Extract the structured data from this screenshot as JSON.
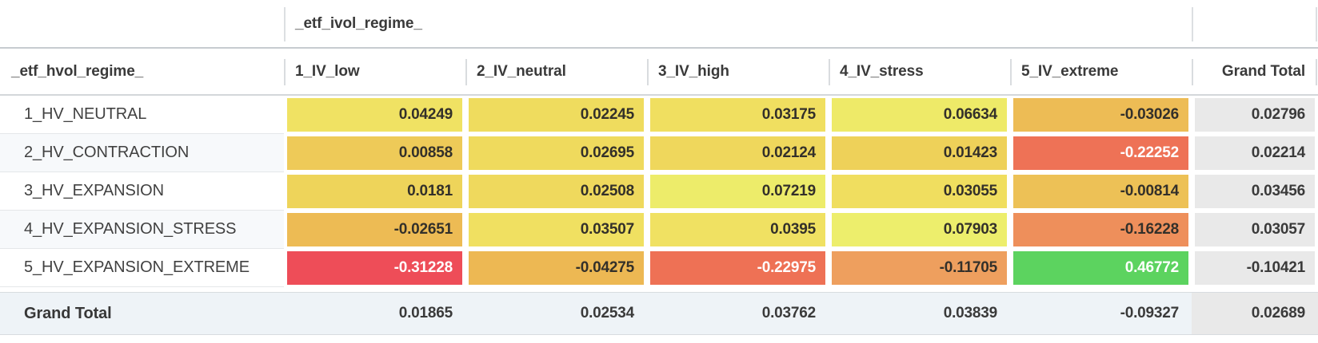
{
  "table": {
    "col_group_header": "_etf_ivol_regime_",
    "row_group_header": "_etf_hvol_regime_",
    "column_headers": [
      "1_IV_low",
      "2_IV_neutral",
      "3_IV_high",
      "4_IV_stress",
      "5_IV_extreme"
    ],
    "grand_total_col_label": "Grand Total",
    "grand_total_row_label": "Grand Total",
    "rows": [
      {
        "label": "1_HV_NEUTRAL",
        "cells": [
          {
            "text": "0.04249",
            "bg": "#f0e263",
            "fg": "#33302a"
          },
          {
            "text": "0.02245",
            "bg": "#efdc5e",
            "fg": "#33302a"
          },
          {
            "text": "0.03175",
            "bg": "#f0df60",
            "fg": "#33302a"
          },
          {
            "text": "0.06634",
            "bg": "#eeea68",
            "fg": "#33302a"
          },
          {
            "text": "-0.03026",
            "bg": "#edbc55",
            "fg": "#33302a"
          }
        ],
        "total": "0.02796"
      },
      {
        "label": "2_HV_CONTRACTION",
        "cells": [
          {
            "text": "0.00858",
            "bg": "#eeca58",
            "fg": "#33302a"
          },
          {
            "text": "0.02695",
            "bg": "#efda5d",
            "fg": "#33302a"
          },
          {
            "text": "0.02124",
            "bg": "#efd75c",
            "fg": "#33302a"
          },
          {
            "text": "0.01423",
            "bg": "#eed159",
            "fg": "#33302a"
          },
          {
            "text": "-0.22252",
            "bg": "#ee7256",
            "fg": "#ffffff"
          }
        ],
        "total": "0.02214"
      },
      {
        "label": "3_HV_EXPANSION",
        "cells": [
          {
            "text": "0.0181",
            "bg": "#eed45a",
            "fg": "#33302a"
          },
          {
            "text": "0.02508",
            "bg": "#efd95d",
            "fg": "#33302a"
          },
          {
            "text": "0.07219",
            "bg": "#edec6a",
            "fg": "#33302a"
          },
          {
            "text": "0.03055",
            "bg": "#f0de5f",
            "fg": "#33302a"
          },
          {
            "text": "-0.00814",
            "bg": "#edc156",
            "fg": "#33302a"
          }
        ],
        "total": "0.03456"
      },
      {
        "label": "4_HV_EXPANSION_STRESS",
        "cells": [
          {
            "text": "-0.02651",
            "bg": "#edbb54",
            "fg": "#33302a"
          },
          {
            "text": "0.03507",
            "bg": "#f0e061",
            "fg": "#33302a"
          },
          {
            "text": "0.0395",
            "bg": "#f0e162",
            "fg": "#33302a"
          },
          {
            "text": "0.07903",
            "bg": "#edee6c",
            "fg": "#33302a"
          },
          {
            "text": "-0.16228",
            "bg": "#ee8f5b",
            "fg": "#33302a"
          }
        ],
        "total": "0.03057"
      },
      {
        "label": "5_HV_EXPANSION_EXTREME",
        "cells": [
          {
            "text": "-0.31228",
            "bg": "#ee4d58",
            "fg": "#ffffff"
          },
          {
            "text": "-0.04275",
            "bg": "#edb853",
            "fg": "#33302a"
          },
          {
            "text": "-0.22975",
            "bg": "#ee7155",
            "fg": "#ffffff"
          },
          {
            "text": "-0.11705",
            "bg": "#ee9f5e",
            "fg": "#33302a"
          },
          {
            "text": "0.46772",
            "bg": "#5cd35f",
            "fg": "#ffffff"
          }
        ],
        "total": "-0.10421"
      }
    ],
    "grand_total_row": {
      "values": [
        "0.01865",
        "0.02534",
        "0.03762",
        "0.03839",
        "-0.09327"
      ],
      "total": "0.02689"
    }
  },
  "colors": {
    "total_col_bg": "#e9e9e9",
    "grand_total_row_bg": "#eef3f7",
    "alt_row_bg": "#f7f9fb",
    "header_text": "#3a3a3a",
    "value_text_dark": "#33302a",
    "value_text_light": "#ffffff"
  },
  "chart_data": {
    "type": "heatmap",
    "title": "",
    "x_label": "_etf_ivol_regime_",
    "y_label": "_etf_hvol_regime_",
    "columns": [
      "1_IV_low",
      "2_IV_neutral",
      "3_IV_high",
      "4_IV_stress",
      "5_IV_extreme"
    ],
    "rows": [
      "1_HV_NEUTRAL",
      "2_HV_CONTRACTION",
      "3_HV_EXPANSION",
      "4_HV_EXPANSION_STRESS",
      "5_HV_EXPANSION_EXTREME"
    ],
    "values": [
      [
        0.04249,
        0.02245,
        0.03175,
        0.06634,
        -0.03026
      ],
      [
        0.00858,
        0.02695,
        0.02124,
        0.01423,
        -0.22252
      ],
      [
        0.0181,
        0.02508,
        0.07219,
        0.03055,
        -0.00814
      ],
      [
        -0.02651,
        0.03507,
        0.0395,
        0.07903,
        -0.16228
      ],
      [
        -0.31228,
        -0.04275,
        -0.22975,
        -0.11705,
        0.46772
      ]
    ],
    "row_totals": [
      0.02796,
      0.02214,
      0.03456,
      0.03057,
      -0.10421
    ],
    "col_totals": [
      0.01865,
      0.02534,
      0.03762,
      0.03839,
      -0.09327
    ],
    "grand_total": 0.02689,
    "legend_position": "none",
    "colormap": "red-yellow-green"
  }
}
